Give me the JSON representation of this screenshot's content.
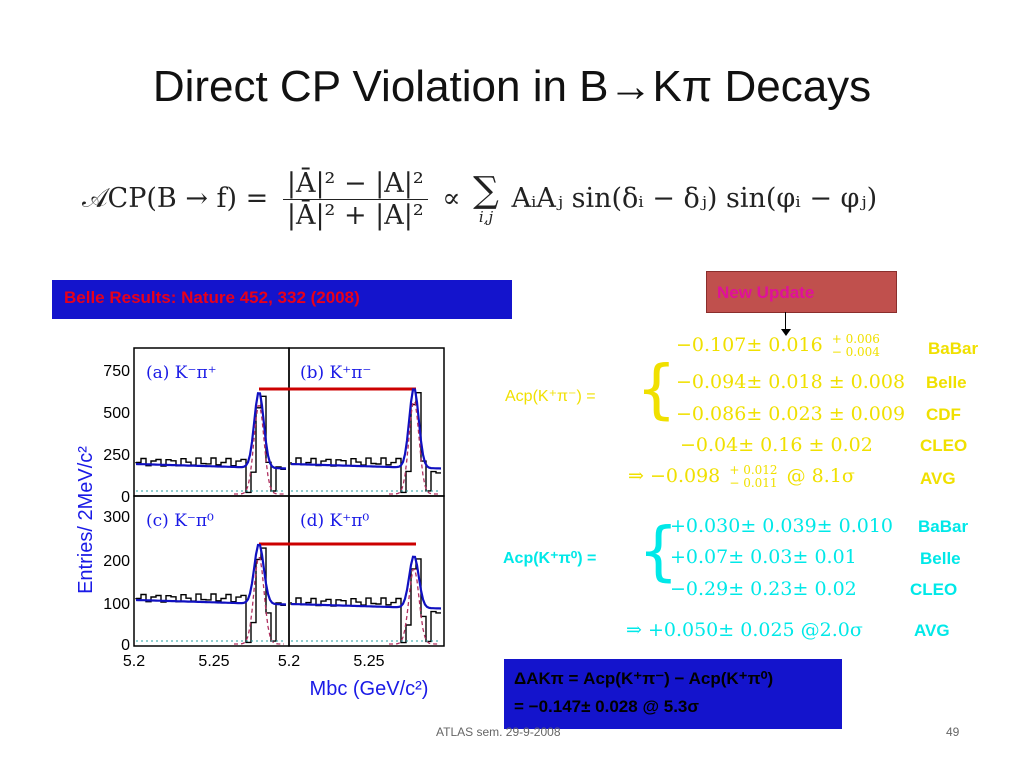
{
  "slide": {
    "title": "Direct CP Violation in B→Kπ Decays",
    "formula": {
      "lhs": "𝒜CP(B → f) =",
      "num": "|Ā|² − |A|²",
      "den": "|Ā|² + |A|²",
      "prop": "∝",
      "sum_index": "i,j",
      "rhs": "AᵢAⱼ sin(δᵢ − δⱼ) sin(φᵢ − φⱼ)"
    },
    "belle_label": "Belle Results: Nature 452, 332 (2008)",
    "new_update": "New Update",
    "kpim": {
      "label": "Acp(K⁺π⁻) =",
      "rows": [
        {
          "value": "−0.107± 0.016",
          "sup": "+ 0.006",
          "sub": "− 0.004",
          "exp": "BaBar"
        },
        {
          "value": "−0.094± 0.018 ± 0.008",
          "exp": "Belle"
        },
        {
          "value": "−0.086± 0.023 ± 0.009",
          "exp": "CDF"
        },
        {
          "value": "−0.04± 0.16 ± 0.02",
          "exp": "CLEO"
        }
      ],
      "avg_prefix": "⇒ −0.098",
      "avg_sup": "+ 0.012",
      "avg_sub": "− 0.011",
      "avg_signif": "@ 8.1σ",
      "avg_label": "AVG"
    },
    "kpi0": {
      "label": "Acp(K⁺π⁰) =",
      "rows": [
        {
          "value": "+0.030± 0.039± 0.010",
          "exp": "BaBar"
        },
        {
          "value": "+0.07± 0.03± 0.01",
          "exp": "Belle"
        },
        {
          "value": "−0.29± 0.23± 0.02",
          "exp": "CLEO"
        }
      ],
      "avg": "⇒ +0.050± 0.025 @2.0σ",
      "avg_label": "AVG"
    },
    "delta": {
      "line1": "ΔAKπ = Acp(K⁺π⁻) − Acp(K⁺π⁰)",
      "line2": "= −0.147± 0.028 @ 5.3σ"
    },
    "footer": "ATLAS sem. 29-9-2008",
    "page": "49"
  },
  "plot": {
    "ylabel": "Entries/ 2MeV/c²",
    "xlabel": "Mbc (GeV/c²)",
    "panels": [
      "(a) K⁻π⁺",
      "(b) K⁺π⁻",
      "(c) K⁻π⁰",
      "(d) K⁺π⁰"
    ],
    "top_yticks": [
      "750",
      "500",
      "250",
      "0"
    ],
    "bottom_yticks": [
      "300",
      "200",
      "100",
      "0"
    ],
    "xticks_left": [
      "5.2",
      "5.25"
    ],
    "xticks_right": [
      "5.2",
      "5.25"
    ]
  }
}
